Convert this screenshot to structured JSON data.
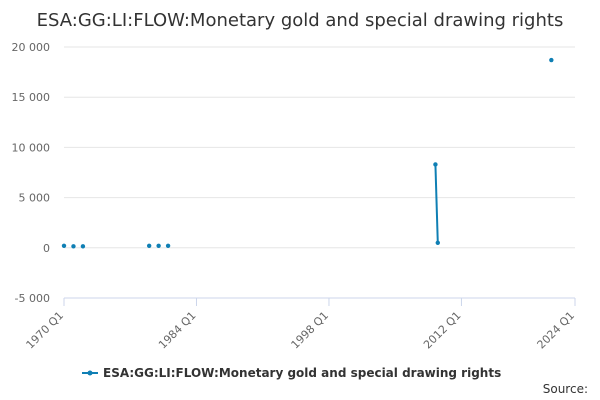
{
  "chart_data": {
    "type": "line",
    "title": "ESA:GG:LI:FLOW:Monetary gold and special drawing rights",
    "xlabel": "",
    "ylabel": "",
    "x_ticks": [
      "1970 Q1",
      "1984 Q1",
      "1998 Q1",
      "2012 Q1",
      "2024 Q1"
    ],
    "x_tick_values": [
      1970.0,
      1984.0,
      1998.0,
      2012.0,
      2024.0
    ],
    "xlim": [
      1970.0,
      2024.0
    ],
    "ylim": [
      -5000,
      20000
    ],
    "y_ticks": [
      -5000,
      0,
      5000,
      10000,
      15000,
      20000
    ],
    "y_tick_labels": [
      "-5 000",
      "0",
      "5 000",
      "10 000",
      "15 000",
      "20 000"
    ],
    "grid": true,
    "legend_position": "bottom-center",
    "series": [
      {
        "name": "ESA:GG:LI:FLOW:Monetary gold and special drawing rights",
        "color": "#0f7fb4",
        "x": [
          1970.0,
          1971.0,
          1972.0,
          1979.0,
          1980.0,
          1981.0,
          2009.25,
          2009.5,
          2021.5
        ],
        "y": [
          200,
          150,
          150,
          200,
          200,
          200,
          8300,
          500,
          18700
        ],
        "connect_after": [
          false,
          false,
          false,
          false,
          false,
          false,
          true,
          false,
          false
        ]
      }
    ]
  },
  "source_label": "Source:"
}
